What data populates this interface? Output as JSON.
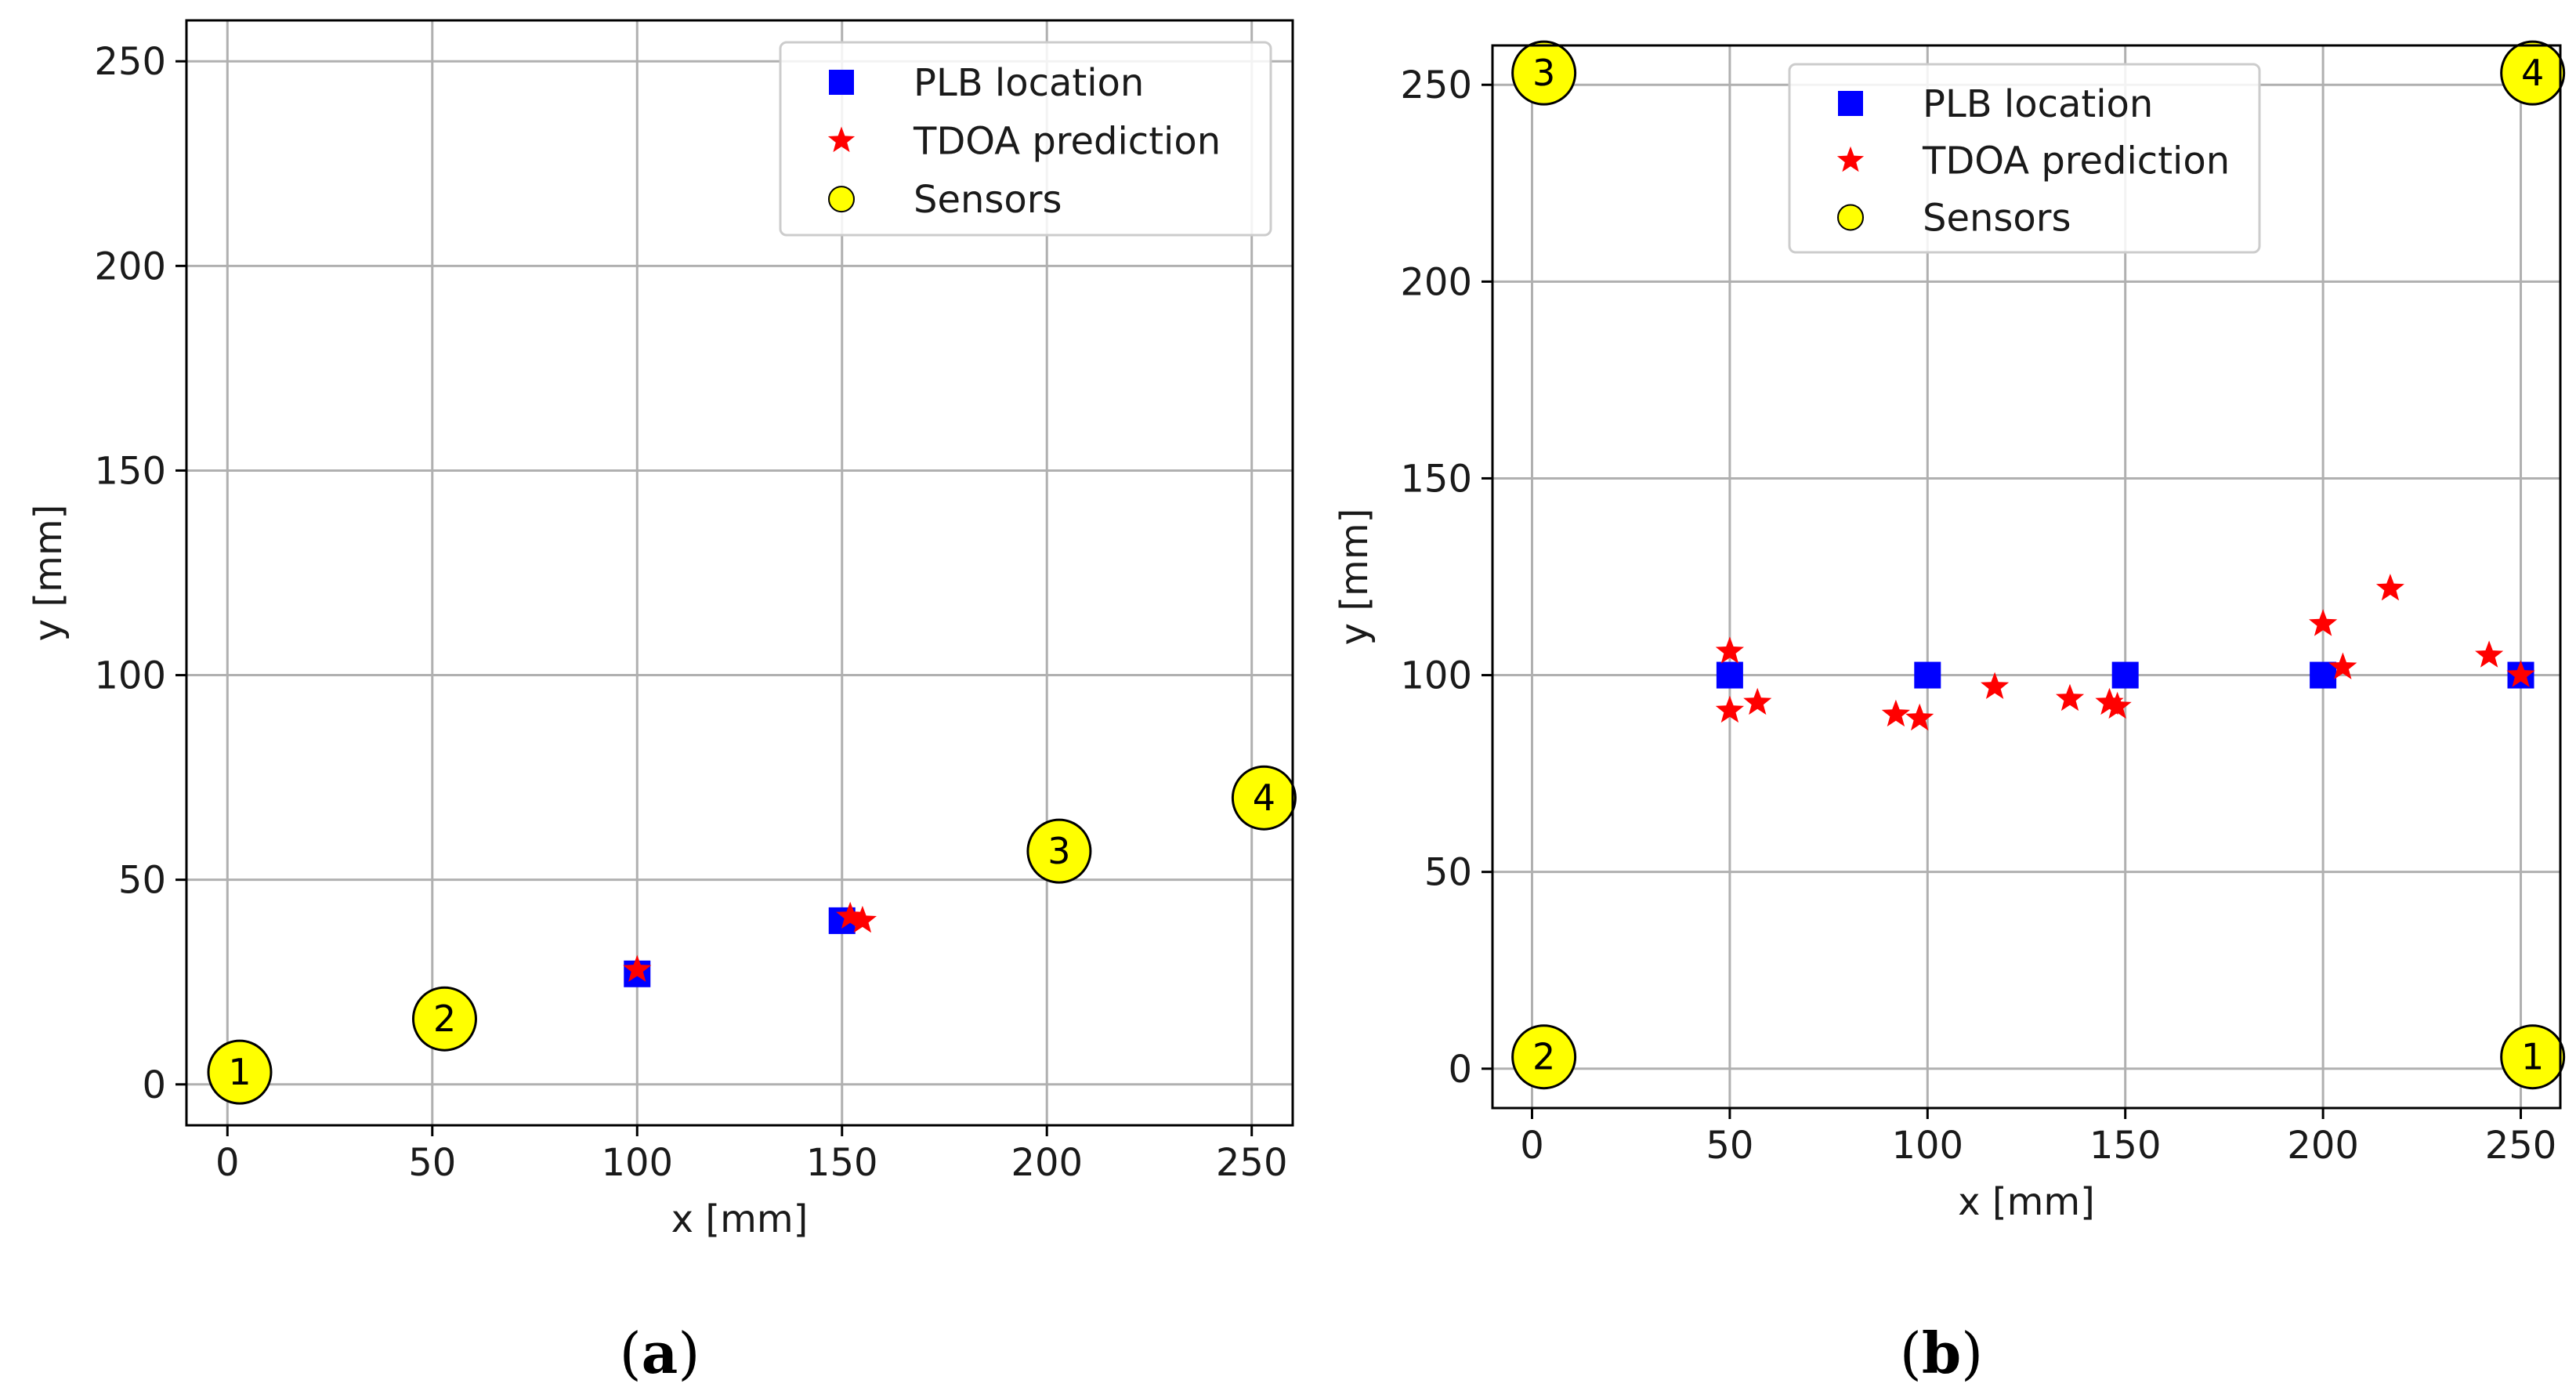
{
  "chart_data": [
    {
      "type": "scatter",
      "caption": {
        "open": "(",
        "letter": "a",
        "close": ")"
      },
      "xlabel": "x [mm]",
      "ylabel": "y [mm]",
      "xlim": [
        -10,
        260
      ],
      "ylim": [
        -10,
        260
      ],
      "xticks": [
        0,
        50,
        100,
        150,
        200,
        250
      ],
      "yticks": [
        0,
        50,
        100,
        150,
        200,
        250
      ],
      "grid": true,
      "legend_position": "top-right",
      "legend": [
        {
          "key": "plb",
          "label": "PLB location",
          "color": "#0000ff",
          "marker": "square"
        },
        {
          "key": "tdoa",
          "label": "TDOA prediction",
          "color": "#ff0000",
          "marker": "star"
        },
        {
          "key": "sensor",
          "label": "Sensors",
          "color": "#ffff00",
          "marker": "circle"
        }
      ],
      "series": [
        {
          "key": "plb",
          "name": "PLB location",
          "points": [
            [
              100,
              27
            ],
            [
              150,
              40
            ]
          ]
        },
        {
          "key": "tdoa",
          "name": "TDOA prediction",
          "points": [
            [
              100,
              28
            ],
            [
              152,
              41
            ],
            [
              155,
              40
            ]
          ]
        },
        {
          "key": "sensor",
          "name": "Sensors",
          "points": [
            [
              3,
              3,
              "1"
            ],
            [
              53,
              16,
              "2"
            ],
            [
              203,
              57,
              "3"
            ],
            [
              253,
              70,
              "4"
            ]
          ]
        }
      ]
    },
    {
      "type": "scatter",
      "caption": {
        "open": "(",
        "letter": "b",
        "close": ")"
      },
      "xlabel": "x [mm]",
      "ylabel": "y [mm]",
      "xlim": [
        -10,
        260
      ],
      "ylim": [
        -10,
        260
      ],
      "xticks": [
        0,
        50,
        100,
        150,
        200,
        250
      ],
      "yticks": [
        0,
        50,
        100,
        150,
        200,
        250
      ],
      "grid": true,
      "legend_position": "top-center",
      "legend": [
        {
          "key": "plb",
          "label": "PLB location",
          "color": "#0000ff",
          "marker": "square"
        },
        {
          "key": "tdoa",
          "label": "TDOA prediction",
          "color": "#ff0000",
          "marker": "star"
        },
        {
          "key": "sensor",
          "label": "Sensors",
          "color": "#ffff00",
          "marker": "circle"
        }
      ],
      "series": [
        {
          "key": "plb",
          "name": "PLB location",
          "points": [
            [
              50,
              100
            ],
            [
              100,
              100
            ],
            [
              150,
              100
            ],
            [
              200,
              100
            ],
            [
              250,
              100
            ]
          ]
        },
        {
          "key": "tdoa",
          "name": "TDOA prediction",
          "points": [
            [
              50,
              106
            ],
            [
              50,
              91
            ],
            [
              57,
              93
            ],
            [
              92,
              90
            ],
            [
              98,
              89
            ],
            [
              117,
              97
            ],
            [
              136,
              94
            ],
            [
              146,
              93
            ],
            [
              148,
              92
            ],
            [
              200,
              113
            ],
            [
              205,
              102
            ],
            [
              217,
              122
            ],
            [
              242,
              105
            ],
            [
              250,
              100
            ]
          ]
        },
        {
          "key": "sensor",
          "name": "Sensors",
          "points": [
            [
              3,
              253,
              "3"
            ],
            [
              253,
              253,
              "4"
            ],
            [
              3,
              3,
              "2"
            ],
            [
              253,
              3,
              "1"
            ]
          ]
        }
      ]
    }
  ]
}
